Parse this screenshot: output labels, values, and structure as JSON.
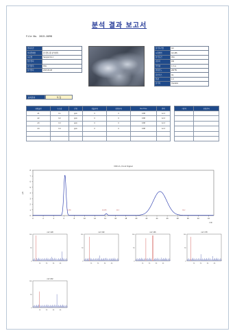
{
  "report": {
    "title": "분석 결과 보고서",
    "doc_no": "File No. 2015-0098",
    "result_label": "분석결과",
    "result_value": "적 합"
  },
  "info_left": [
    {
      "k": "의뢰기관",
      "v": ""
    },
    {
      "k": "의뢰업체명",
      "v": "한국연구원 분석센터"
    },
    {
      "k": "시료명",
      "v": "Sample No.1"
    },
    {
      "k": "접수일자",
      "v": ""
    },
    {
      "k": "분석항목",
      "v": "PAH"
    },
    {
      "k": "분석일자",
      "v": "2015.06.08"
    }
  ],
  "info_right": [
    {
      "k": "분석기기명",
      "v": "GC"
    },
    {
      "k": "시험방법",
      "v": "GC-MS"
    },
    {
      "k": "분석조건",
      "v": "30m"
    },
    {
      "k": "검출기",
      "v": "FID"
    },
    {
      "k": "주입량",
      "v": "1.0 uL"
    },
    {
      "k": "컬럼온도",
      "v": "280 ℃"
    },
    {
      "k": "운반가스",
      "v": "He"
    },
    {
      "k": "유량",
      "v": "1.0"
    },
    {
      "k": "분석자",
      "v": "Operator"
    }
  ],
  "table": {
    "headers": [
      "화합물명",
      "농도값",
      "단위",
      "검출한계",
      "정량한계",
      "Ret.Time",
      "면적"
    ],
    "rows": [
      [
        "A1",
        "0.1",
        "ppm",
        "0",
        "0",
        "9.88",
        "12.3"
      ],
      [
        "A2",
        "0.2",
        "ppm",
        "0",
        "0",
        "9.88",
        "12.3"
      ],
      [
        "A3",
        "0.3",
        "ppm",
        "0",
        "0",
        "9.88",
        "12.3"
      ],
      [
        "A4",
        "0.4",
        "ppm",
        "0",
        "0",
        "9.88",
        "12.3"
      ],
      [
        "",
        "",
        "",
        "",
        "",
        "",
        ""
      ],
      [
        "",
        "",
        "",
        "",
        "",
        "",
        ""
      ]
    ],
    "side_headers": [
      "기준치",
      "판정결과"
    ]
  },
  "chart_data": [
    {
      "type": "line",
      "title": "FID1 A, Front Signal",
      "xlabel": "min",
      "ylabel": "pA",
      "xlim": [
        0,
        35
      ],
      "ylim": [
        0,
        8
      ],
      "x_ticks": [
        "0",
        "2",
        "4",
        "6",
        "8",
        "10",
        "12",
        "14",
        "16",
        "18",
        "20",
        "22",
        "24",
        "26",
        "28",
        "30",
        "32",
        "34"
      ],
      "y_ticks": [
        "0",
        "1",
        "2",
        "3",
        "4",
        "5",
        "6",
        "7",
        "8"
      ],
      "peaks": [
        {
          "x": 6.2,
          "y": 7.1
        },
        {
          "x": 14.2,
          "y": 0.3
        },
        {
          "x": 24.6,
          "y": 4.2
        }
      ],
      "annotations": [
        {
          "x": 7.0,
          "text": "6.180"
        },
        {
          "x": 13.8,
          "text": "14.096"
        },
        {
          "x": 16.4,
          "text": "16.3"
        },
        {
          "x": 29.2,
          "text": "30.2"
        }
      ]
    }
  ],
  "mini_charts": [
    {
      "title": "m/z 128",
      "ylim": [
        0,
        100
      ],
      "xlabel": ""
    },
    {
      "title": "m/z 152",
      "ylim": [
        0,
        100
      ],
      "xlabel": ""
    },
    {
      "title": "m/z 166",
      "ylim": [
        0,
        100
      ],
      "xlabel": ""
    },
    {
      "title": "m/z 178",
      "ylim": [
        0,
        100
      ],
      "xlabel": ""
    },
    {
      "title": "m/z 202",
      "ylim": [
        0,
        100
      ],
      "xlabel": ""
    }
  ]
}
